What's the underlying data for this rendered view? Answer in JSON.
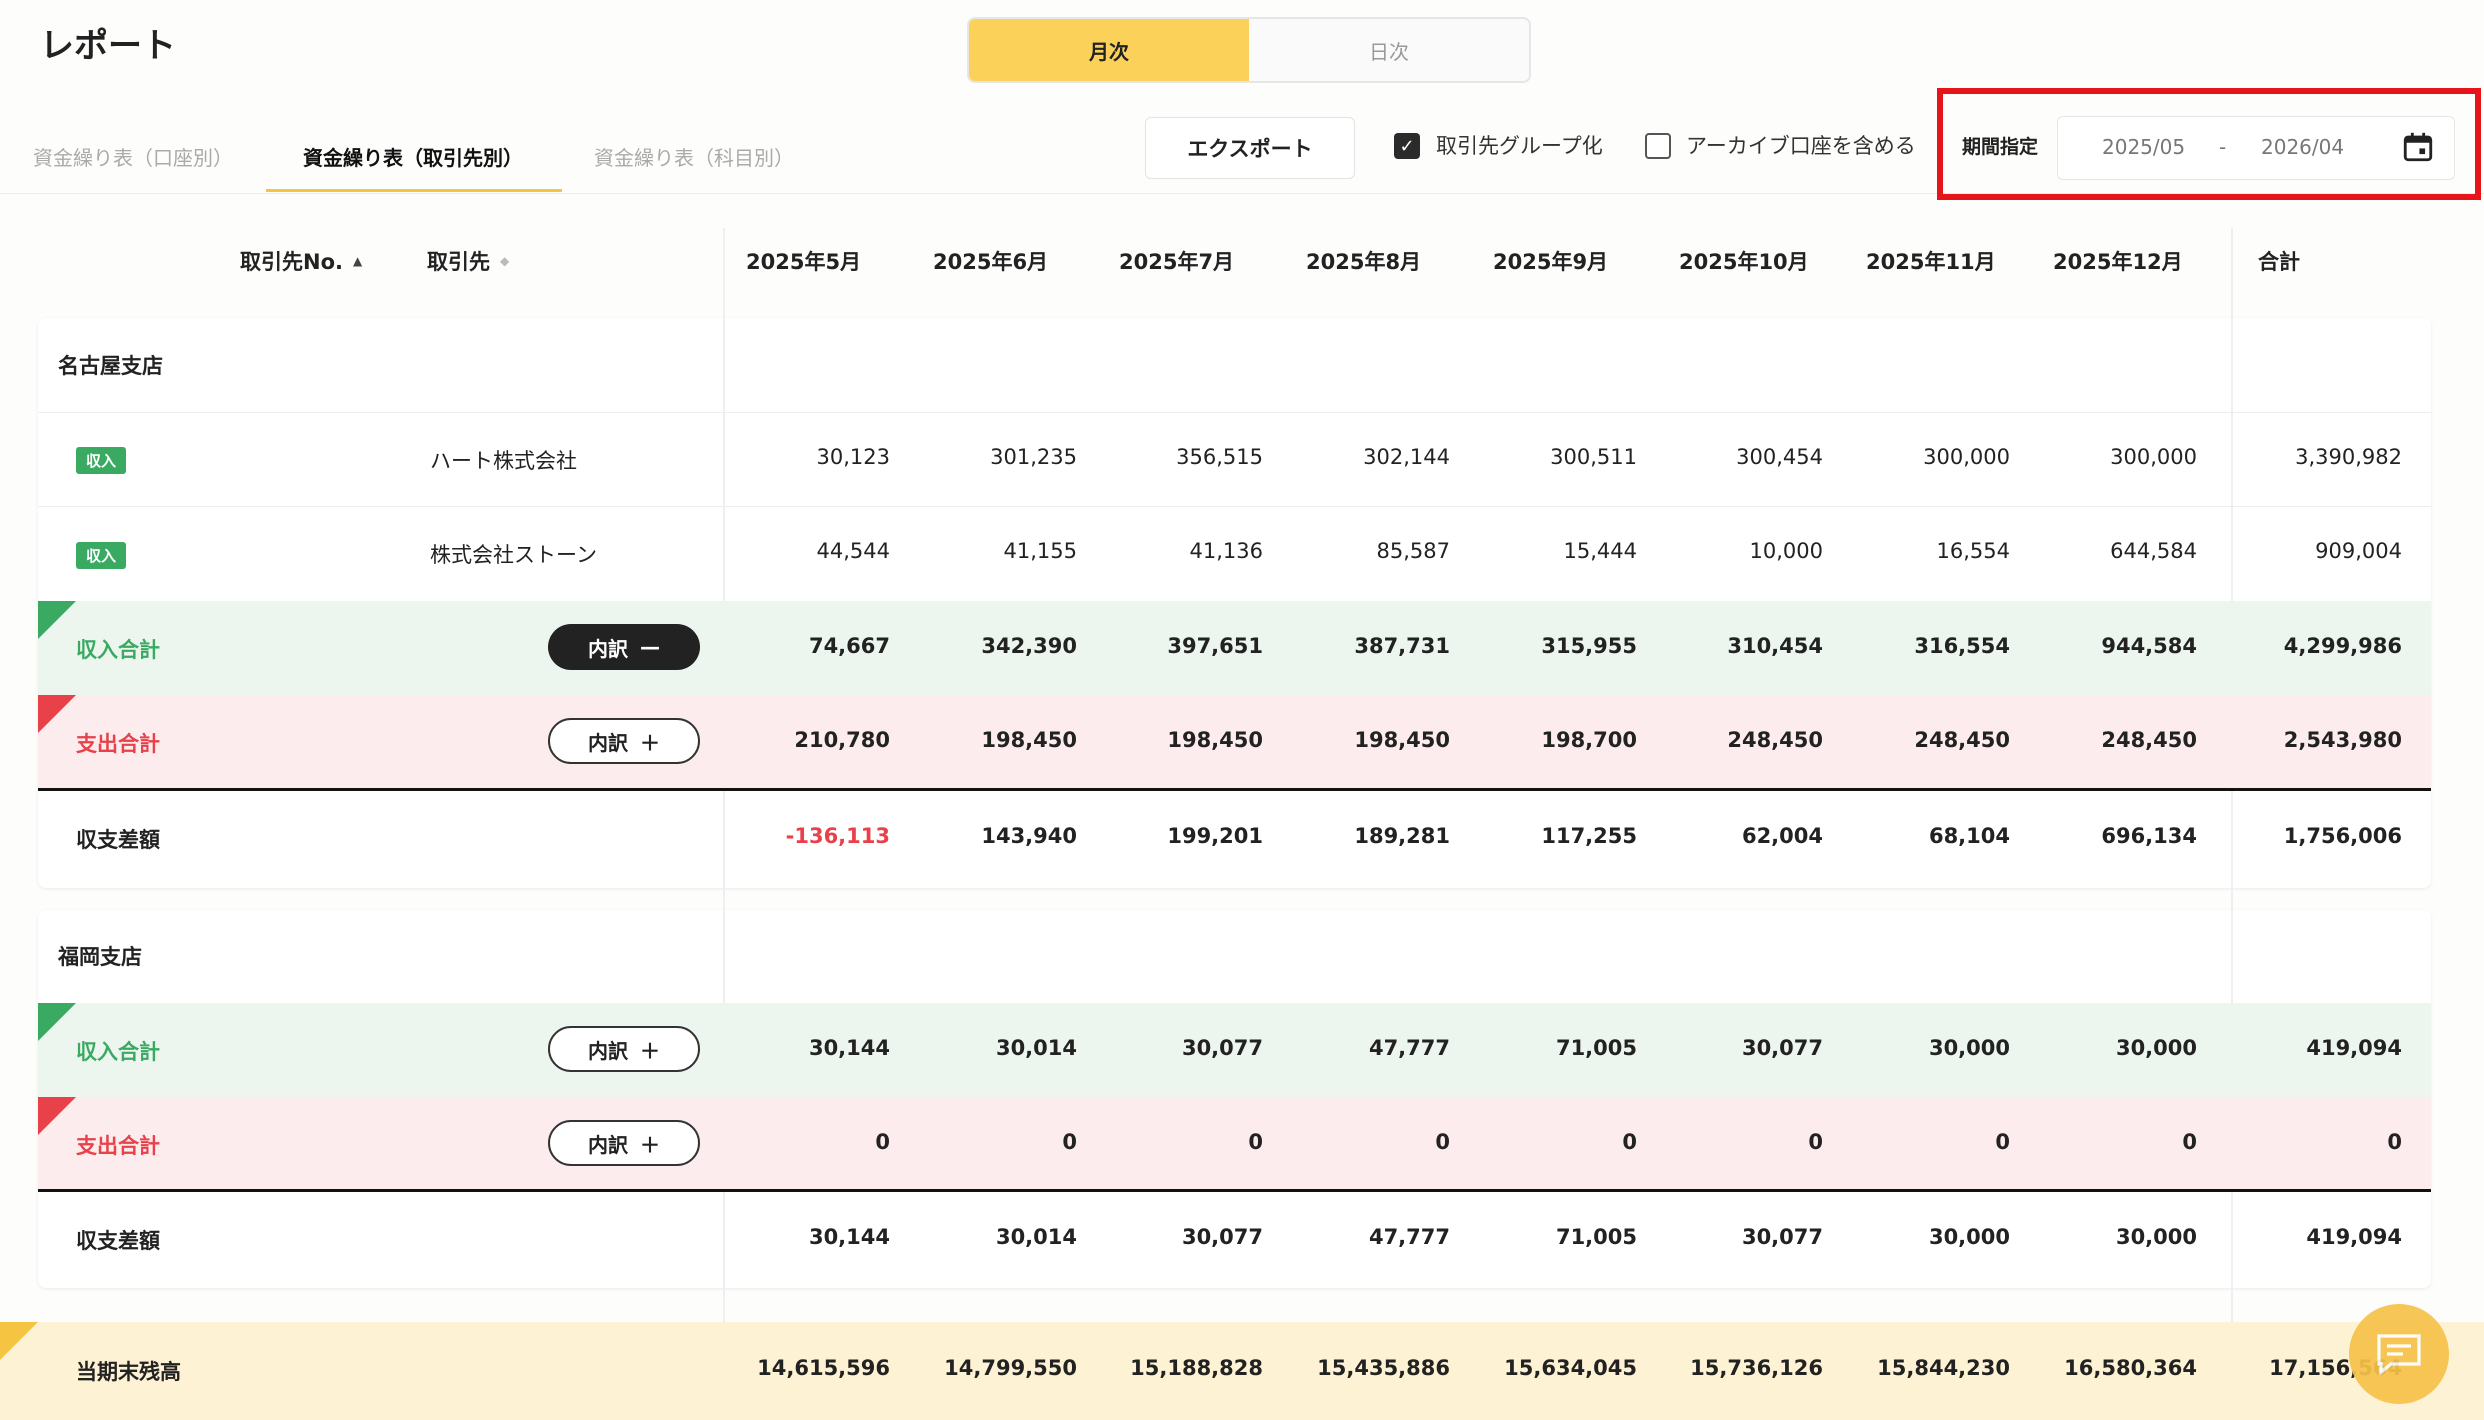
{
  "page": {
    "title": "レポート"
  },
  "view_toggle": {
    "monthly": "月次",
    "daily": "日次",
    "active": "monthly"
  },
  "tabs": [
    {
      "label": "資金繰り表（口座別）",
      "active": false
    },
    {
      "label": "資金繰り表（取引先別）",
      "active": true
    },
    {
      "label": "資金繰り表（科目別）",
      "active": false
    }
  ],
  "toolbar": {
    "export_label": "エクスポート",
    "group_by_partner": {
      "label": "取引先グループ化",
      "checked": true
    },
    "include_archived": {
      "label": "アーカイブ口座を含める",
      "checked": false
    },
    "period_label": "期間指定",
    "period_start": "2025/05",
    "period_separator": "-",
    "period_end": "2026/04"
  },
  "colors": {
    "accent": "#fcd15a",
    "income_bg": "#ecf6ee",
    "expense_bg": "#fdeced",
    "income_text": "#3aaa63",
    "expense_text": "#e8414a",
    "highlight": "#e8141b",
    "ending_bg": "#fdf2d3"
  },
  "table": {
    "headers": {
      "partner_no": "取引先No.",
      "partner": "取引先",
      "months": [
        "2025年5月",
        "2025年6月",
        "2025年7月",
        "2025年8月",
        "2025年9月",
        "2025年10月",
        "2025年11月",
        "2025年12月"
      ],
      "total": "合計"
    },
    "breakdown_label": "内訳",
    "groups": [
      {
        "name": "名古屋支店",
        "items": [
          {
            "badge": "収入",
            "partner": "ハート株式会社",
            "values": [
              "30,123",
              "301,235",
              "356,515",
              "302,144",
              "300,511",
              "300,454",
              "300,000",
              "300,000"
            ],
            "total": "3,390,982"
          },
          {
            "badge": "収入",
            "partner": "株式会社ストーン",
            "values": [
              "44,544",
              "41,155",
              "41,136",
              "85,587",
              "15,444",
              "10,000",
              "16,554",
              "644,584"
            ],
            "total": "909,004"
          }
        ],
        "income_total": {
          "label": "収入合計",
          "expanded": true,
          "values": [
            "74,667",
            "342,390",
            "397,651",
            "387,731",
            "315,955",
            "310,454",
            "316,554",
            "944,584"
          ],
          "total": "4,299,986"
        },
        "expense_total": {
          "label": "支出合計",
          "expanded": false,
          "values": [
            "210,780",
            "198,450",
            "198,450",
            "198,450",
            "198,700",
            "248,450",
            "248,450",
            "248,450"
          ],
          "total": "2,543,980"
        },
        "difference": {
          "label": "収支差額",
          "values": [
            "-136,113",
            "143,940",
            "199,201",
            "189,281",
            "117,255",
            "62,004",
            "68,104",
            "696,134"
          ],
          "total": "1,756,006"
        }
      },
      {
        "name": "福岡支店",
        "items": [],
        "income_total": {
          "label": "収入合計",
          "expanded": false,
          "values": [
            "30,144",
            "30,014",
            "30,077",
            "47,777",
            "71,005",
            "30,077",
            "30,000",
            "30,000"
          ],
          "total": "419,094"
        },
        "expense_total": {
          "label": "支出合計",
          "expanded": false,
          "values": [
            "0",
            "0",
            "0",
            "0",
            "0",
            "0",
            "0",
            "0"
          ],
          "total": "0"
        },
        "difference": {
          "label": "収支差額",
          "values": [
            "30,144",
            "30,014",
            "30,077",
            "47,777",
            "71,005",
            "30,077",
            "30,000",
            "30,000"
          ],
          "total": "419,094"
        }
      }
    ],
    "ending_balance": {
      "label": "当期末残高",
      "values": [
        "14,615,596",
        "14,799,550",
        "15,188,828",
        "15,435,886",
        "15,634,045",
        "15,736,126",
        "15,844,230",
        "16,580,364"
      ],
      "total": "17,156,564"
    }
  },
  "icons": {
    "calendar": "calendar-icon",
    "chat": "chat-icon",
    "check": "check-icon"
  }
}
